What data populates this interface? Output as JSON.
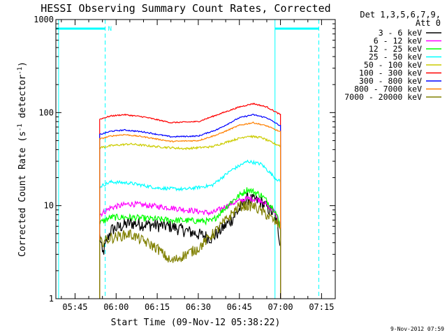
{
  "chart_data": {
    "type": "line",
    "title": "HESSI Observing Summary Count Rates, Corrected",
    "xlabel": "Start Time (09-Nov-12 05:38:22)",
    "ylabel_main": "Corrected Count Rate (s",
    "ylabel_sup1": "-1",
    "ylabel_mid": " detector",
    "ylabel_sup2": "-1",
    "ylabel_end": ")",
    "y_scale": "log",
    "ylim": [
      1,
      1000
    ],
    "xlim": [
      "05:38",
      "07:20"
    ],
    "x_ticks": [
      "05:45",
      "06:00",
      "06:15",
      "06:30",
      "06:45",
      "07:00",
      "07:15"
    ],
    "y_ticks": [
      "1",
      "10",
      "100",
      "1000"
    ],
    "legend_header": [
      "Det 1,3,5,6,7,9,",
      "Att 0"
    ],
    "legend_position": "right",
    "markers": {
      "night_bars": [
        [
          "05:38",
          "05:56"
        ],
        [
          "06:58",
          "07:14"
        ]
      ],
      "night_label": "N",
      "solid_lines": [
        "05:39",
        "06:58"
      ],
      "dashed_lines": [
        "05:56",
        "07:14"
      ]
    },
    "timestamp": "9-Nov-2012 07:59",
    "series": [
      {
        "name": "3 - 6 keV",
        "color": "#000000",
        "noise": 0.16,
        "points": [
          [
            "05:54",
            5
          ],
          [
            "05:55",
            3
          ],
          [
            "05:58",
            5.5
          ],
          [
            "06:05",
            6.5
          ],
          [
            "06:20",
            6.0
          ],
          [
            "06:35",
            4.5
          ],
          [
            "06:42",
            7
          ],
          [
            "06:48",
            12
          ],
          [
            "06:53",
            11
          ],
          [
            "06:58",
            8
          ],
          [
            "07:00",
            4
          ]
        ]
      },
      {
        "name": "6 - 12 keV",
        "color": "#ff00ff",
        "noise": 0.07,
        "points": [
          [
            "05:54",
            8
          ],
          [
            "05:58",
            9.5
          ],
          [
            "06:05",
            10.5
          ],
          [
            "06:20",
            9.5
          ],
          [
            "06:35",
            8.3
          ],
          [
            "06:42",
            10.5
          ],
          [
            "06:48",
            12
          ],
          [
            "06:53",
            11.5
          ],
          [
            "06:58",
            8.5
          ],
          [
            "07:00",
            6
          ]
        ]
      },
      {
        "name": "12 - 25 keV",
        "color": "#00ff00",
        "noise": 0.08,
        "points": [
          [
            "05:54",
            6.5
          ],
          [
            "05:58",
            7.5
          ],
          [
            "06:05",
            7.5
          ],
          [
            "06:20",
            7.0
          ],
          [
            "06:35",
            6.8
          ],
          [
            "06:42",
            11
          ],
          [
            "06:48",
            15
          ],
          [
            "06:53",
            13
          ],
          [
            "06:58",
            9
          ],
          [
            "07:00",
            6
          ]
        ]
      },
      {
        "name": "25 - 50 keV",
        "color": "#00ffff",
        "noise": 0.04,
        "points": [
          [
            "05:54",
            16
          ],
          [
            "05:58",
            18
          ],
          [
            "06:05",
            17.5
          ],
          [
            "06:15",
            15.5
          ],
          [
            "06:25",
            15
          ],
          [
            "06:35",
            16.5
          ],
          [
            "06:42",
            24
          ],
          [
            "06:48",
            30
          ],
          [
            "06:53",
            28
          ],
          [
            "06:58",
            20
          ],
          [
            "07:00",
            18
          ]
        ]
      },
      {
        "name": "50 - 100 keV",
        "color": "#cccc00",
        "noise": 0.025,
        "points": [
          [
            "05:54",
            42
          ],
          [
            "05:58",
            44
          ],
          [
            "06:05",
            46
          ],
          [
            "06:15",
            43
          ],
          [
            "06:25",
            41
          ],
          [
            "06:35",
            43
          ],
          [
            "06:42",
            50
          ],
          [
            "06:48",
            56
          ],
          [
            "06:53",
            54
          ],
          [
            "06:58",
            46
          ],
          [
            "07:00",
            44
          ]
        ]
      },
      {
        "name": "100 - 300 keV",
        "color": "#ff0000",
        "noise": 0.015,
        "points": [
          [
            "05:54",
            85
          ],
          [
            "05:58",
            92
          ],
          [
            "06:03",
            95
          ],
          [
            "06:10",
            90
          ],
          [
            "06:20",
            78
          ],
          [
            "06:30",
            80
          ],
          [
            "06:37",
            95
          ],
          [
            "06:45",
            115
          ],
          [
            "06:50",
            125
          ],
          [
            "06:55",
            115
          ],
          [
            "07:00",
            95
          ]
        ]
      },
      {
        "name": "300 - 800 keV",
        "color": "#0000ff",
        "noise": 0.015,
        "points": [
          [
            "05:54",
            58
          ],
          [
            "05:58",
            63
          ],
          [
            "06:03",
            65
          ],
          [
            "06:10",
            62
          ],
          [
            "06:20",
            55
          ],
          [
            "06:30",
            56
          ],
          [
            "06:37",
            66
          ],
          [
            "06:45",
            88
          ],
          [
            "06:50",
            95
          ],
          [
            "06:55",
            88
          ],
          [
            "07:00",
            72
          ]
        ]
      },
      {
        "name": "800 - 7000 keV",
        "color": "#ff8000",
        "noise": 0.015,
        "points": [
          [
            "05:54",
            52
          ],
          [
            "05:58",
            56
          ],
          [
            "06:03",
            58
          ],
          [
            "06:10",
            55
          ],
          [
            "06:20",
            49
          ],
          [
            "06:30",
            50
          ],
          [
            "06:37",
            58
          ],
          [
            "06:45",
            73
          ],
          [
            "06:50",
            78
          ],
          [
            "06:55",
            72
          ],
          [
            "07:00",
            62
          ]
        ]
      },
      {
        "name": "7000 - 20000 keV",
        "color": "#808000",
        "noise": 0.13,
        "points": [
          [
            "05:54",
            4
          ],
          [
            "05:58",
            4.5
          ],
          [
            "06:05",
            5
          ],
          [
            "06:15",
            3.5
          ],
          [
            "06:20",
            2.5
          ],
          [
            "06:30",
            3.5
          ],
          [
            "06:38",
            6
          ],
          [
            "06:45",
            10
          ],
          [
            "06:50",
            10
          ],
          [
            "06:55",
            8
          ],
          [
            "07:00",
            6
          ]
        ]
      }
    ]
  }
}
